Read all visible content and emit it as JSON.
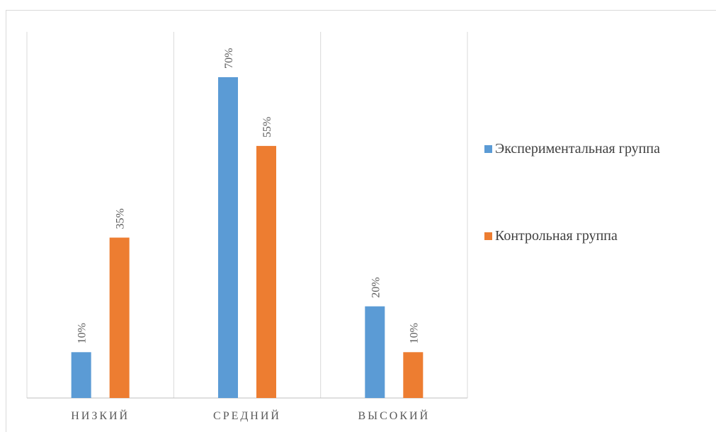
{
  "chart_data": {
    "type": "bar",
    "categories": [
      "НИЗКИЙ",
      "СРЕДНИЙ",
      "ВЫСОКИЙ"
    ],
    "series": [
      {
        "name": "Экспериментальная группа",
        "values": [
          10,
          70,
          20
        ],
        "labels": [
          "10%",
          "70%",
          "20%"
        ],
        "color": "#5b9bd5"
      },
      {
        "name": "Контрольная группа",
        "values": [
          35,
          55,
          10
        ],
        "labels": [
          "35%",
          "55%",
          "10%"
        ],
        "color": "#ed7d31"
      }
    ],
    "ylim": [
      0,
      80
    ],
    "grid": "vertical separators",
    "legend_position": "right"
  }
}
